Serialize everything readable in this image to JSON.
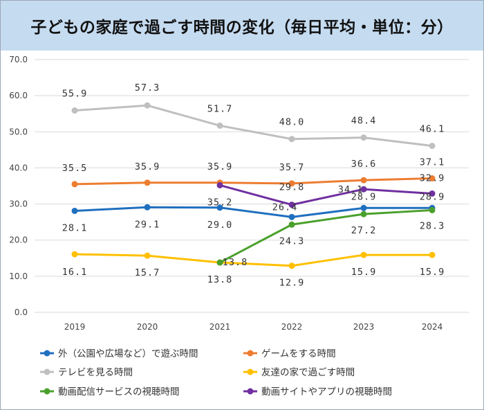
{
  "title": "子どもの家庭で過ごす時間の変化（毎日平均・単位：分）",
  "chart_data": {
    "type": "line",
    "categories": [
      "2019",
      "2020",
      "2021",
      "2022",
      "2023",
      "2024"
    ],
    "ylim": [
      0,
      70
    ],
    "yticks": [
      "0.0",
      "10.0",
      "20.0",
      "30.0",
      "40.0",
      "50.0",
      "60.0",
      "70.0"
    ],
    "grid": true,
    "legend_position": "bottom",
    "series": [
      {
        "name": "外（公園や広場など）で遊ぶ時間",
        "color": "#1f6fbf",
        "values": [
          28.1,
          29.1,
          29.0,
          26.4,
          28.9,
          28.9
        ],
        "labels": [
          "28.1",
          "29.1",
          "29.0",
          "26.4",
          "28.9",
          "28.9"
        ]
      },
      {
        "name": "ゲームをする時間",
        "color": "#ed7d31",
        "values": [
          35.5,
          35.9,
          35.9,
          35.7,
          36.6,
          37.1
        ],
        "labels": [
          "35.5",
          "35.9",
          "35.9",
          "35.7",
          "36.6",
          "37.1"
        ]
      },
      {
        "name": "テレビを見る時間",
        "color": "#bfbfbf",
        "values": [
          55.9,
          57.3,
          51.7,
          48.0,
          48.4,
          46.1
        ],
        "labels": [
          "55.9",
          "57.3",
          "51.7",
          "48.0",
          "48.4",
          "46.1"
        ]
      },
      {
        "name": "友達の家で過ごす時間",
        "color": "#ffc000",
        "values": [
          16.1,
          15.7,
          13.8,
          12.9,
          15.9,
          15.9
        ],
        "labels": [
          "16.1",
          "15.7",
          "13.8",
          "12.9",
          "15.9",
          "15.9"
        ]
      },
      {
        "name": "動画配信サービスの視聴時間",
        "color": "#4aa02c",
        "values": [
          null,
          null,
          13.8,
          24.3,
          27.2,
          28.3
        ],
        "labels": [
          null,
          null,
          "13.8",
          "24.3",
          "27.2",
          "28.3"
        ]
      },
      {
        "name": "動画サイトやアプリの視聴時間",
        "color": "#7030a0",
        "values": [
          null,
          null,
          35.2,
          29.8,
          34.1,
          32.9
        ],
        "labels": [
          null,
          null,
          "35.2",
          "29.8",
          "34.1",
          "32.9"
        ]
      }
    ]
  }
}
